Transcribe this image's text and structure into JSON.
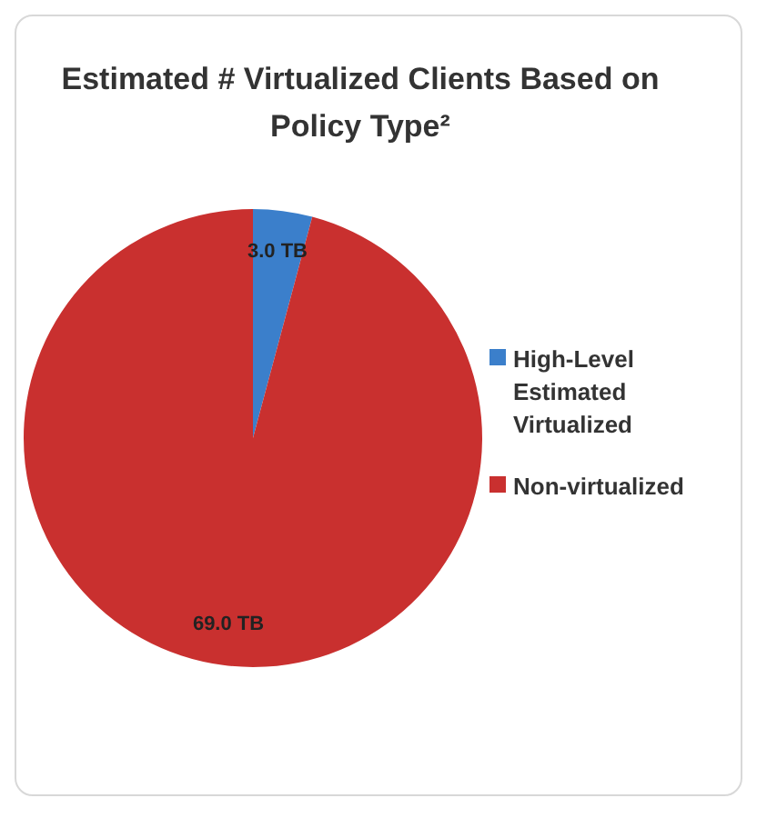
{
  "chart_data": {
    "type": "pie",
    "title": "Estimated # Virtualized Clients Based on Policy Type²",
    "categories": [
      "High-Level Estimated Virtualized",
      "Non-virtualized"
    ],
    "values": [
      3.0,
      69.0
    ],
    "colors": [
      "#3b7fcb",
      "#c9302f"
    ],
    "value_labels": [
      "3.0 TB",
      "69.0 TB"
    ],
    "legend": "right"
  }
}
